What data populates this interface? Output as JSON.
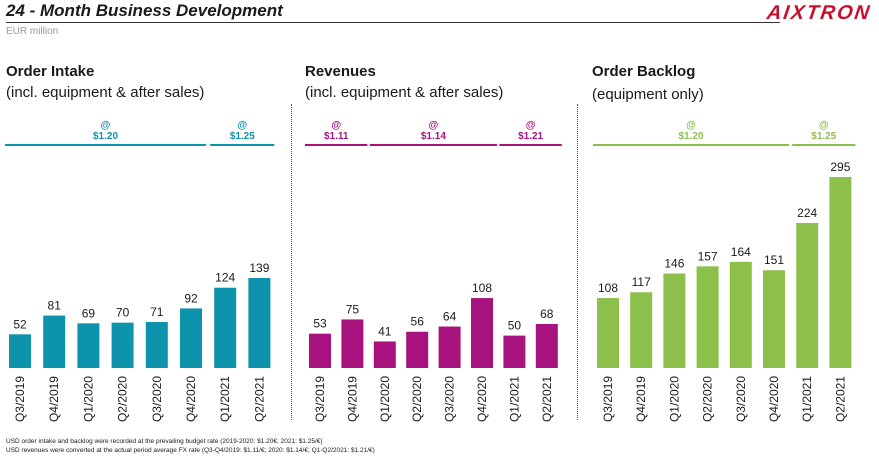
{
  "header": {
    "title": "24 - Month Business Development",
    "unit": "EUR million",
    "logo": "AIXTRON"
  },
  "footnotes": [
    "USD order intake and backlog were recorded at the prevailing budget rate (2019-2020: $1.20€; 2021: $1.25/€)",
    "USD revenues were converted at the actual period average FX rate (Q3-Q4/2019: $1.11/€; 2020: $1.14/€; Q1-Q2/2021: $1.21/€)"
  ],
  "colors": {
    "order_intake": "#0e93ad",
    "revenues": "#a8127f",
    "order_backlog": "#8cc04b"
  },
  "panels": [
    {
      "title": "Order Intake",
      "subtitle": "(incl. equipment & after sales)"
    },
    {
      "title": "Revenues",
      "subtitle": "(incl. equipment & after sales)"
    },
    {
      "title": "Order Backlog",
      "subtitle": "(equipment only)"
    }
  ],
  "chart_data": [
    {
      "type": "bar",
      "title": "Order Intake",
      "categories": [
        "Q3/2019",
        "Q4/2019",
        "Q1/2020",
        "Q2/2020",
        "Q3/2020",
        "Q4/2020",
        "Q1/2021",
        "Q2/2021"
      ],
      "values": [
        52,
        81,
        69,
        70,
        71,
        92,
        124,
        139
      ],
      "color": "#0e93ad",
      "ylim": [
        0,
        300
      ],
      "fx_annotations": [
        {
          "symbol": "@",
          "rate": "$1.20",
          "from": 0,
          "to": 5
        },
        {
          "symbol": "@",
          "rate": "$1.25",
          "from": 6,
          "to": 7
        }
      ]
    },
    {
      "type": "bar",
      "title": "Revenues",
      "categories": [
        "Q3/2019",
        "Q4/2019",
        "Q1/2020",
        "Q2/2020",
        "Q3/2020",
        "Q4/2020",
        "Q1/2021",
        "Q2/2021"
      ],
      "values": [
        53,
        75,
        41,
        56,
        64,
        108,
        50,
        68
      ],
      "color": "#a8127f",
      "ylim": [
        0,
        300
      ],
      "fx_annotations": [
        {
          "symbol": "@",
          "rate": "$1.11",
          "from": 0,
          "to": 1
        },
        {
          "symbol": "@",
          "rate": "$1.14",
          "from": 2,
          "to": 5
        },
        {
          "symbol": "@",
          "rate": "$1.21",
          "from": 6,
          "to": 7
        }
      ]
    },
    {
      "type": "bar",
      "title": "Order Backlog",
      "categories": [
        "Q3/2019",
        "Q4/2019",
        "Q1/2020",
        "Q2/2020",
        "Q3/2020",
        "Q4/2020",
        "Q1/2021",
        "Q2/2021"
      ],
      "values": [
        108,
        117,
        146,
        157,
        164,
        151,
        224,
        295
      ],
      "color": "#8cc04b",
      "ylim": [
        0,
        300
      ],
      "fx_annotations": [
        {
          "symbol": "@",
          "rate": "$1.20",
          "from": 0,
          "to": 5
        },
        {
          "symbol": "@",
          "rate": "$1.25",
          "from": 6,
          "to": 7
        }
      ]
    }
  ]
}
